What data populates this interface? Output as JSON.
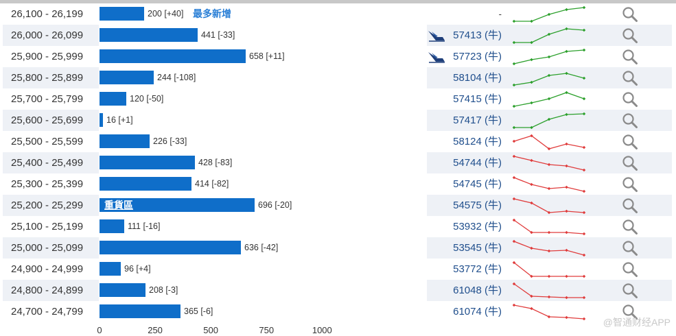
{
  "suffix_bull": "(牛)",
  "axis_ticks": [
    "0",
    "250",
    "500",
    "750",
    "1000"
  ],
  "axis_max": 1000,
  "watermark": "@智通财经APP",
  "colors": {
    "bar": "#0f6ec9",
    "up": "#2ca02c",
    "down": "#e03c3c",
    "code": "#1f4e8c"
  },
  "rows": [
    {
      "range": "26,100 - 26,199",
      "value": 200,
      "label": "200 [+40]",
      "tag": "最多新增",
      "code": "-",
      "bull": false,
      "ship": false,
      "trend": "up",
      "spark": [
        0,
        0,
        0.5,
        0.85,
        1
      ]
    },
    {
      "range": "26,000 - 26,099",
      "value": 441,
      "label": "441 [-33]",
      "code": "57413",
      "bull": true,
      "ship": true,
      "trend": "up",
      "spark": [
        0,
        0,
        0.6,
        1,
        0.9
      ]
    },
    {
      "range": "25,900 - 25,999",
      "value": 658,
      "label": "658 [+11]",
      "code": "57723",
      "bull": true,
      "ship": true,
      "trend": "up",
      "spark": [
        0,
        0.3,
        0.5,
        0.9,
        1
      ]
    },
    {
      "range": "25,800 - 25,899",
      "value": 244,
      "label": "244 [-108]",
      "code": "58104",
      "bull": true,
      "ship": false,
      "trend": "up",
      "spark": [
        0,
        0.2,
        0.7,
        0.85,
        0.5
      ]
    },
    {
      "range": "25,700 - 25,799",
      "value": 120,
      "label": "120 [-50]",
      "code": "57415",
      "bull": true,
      "ship": false,
      "trend": "up",
      "spark": [
        0,
        0.25,
        0.55,
        1,
        0.55
      ]
    },
    {
      "range": "25,600 - 25,699",
      "value": 16,
      "label": "16 [+1]",
      "code": "57417",
      "bull": true,
      "ship": false,
      "trend": "up",
      "spark": [
        0,
        0,
        0.6,
        0.95,
        1
      ]
    },
    {
      "range": "25,500 - 25,599",
      "value": 226,
      "label": "226 [-33]",
      "code": "58124",
      "bull": true,
      "ship": false,
      "trend": "down",
      "spark": [
        0.55,
        0.95,
        0,
        0.35,
        0.1
      ]
    },
    {
      "range": "25,400 - 25,499",
      "value": 428,
      "label": "428 [-83]",
      "code": "54744",
      "bull": true,
      "ship": false,
      "trend": "down",
      "spark": [
        1,
        0.7,
        0.4,
        0.3,
        0
      ]
    },
    {
      "range": "25,300 - 25,399",
      "value": 414,
      "label": "414 [-82]",
      "code": "54745",
      "bull": true,
      "ship": false,
      "trend": "down",
      "spark": [
        1,
        0.5,
        0.2,
        0.3,
        0
      ]
    },
    {
      "range": "25,200 - 25,299",
      "value": 696,
      "label": "696 [-20]",
      "tag_inbar": "重貨區",
      "code": "54575",
      "bull": true,
      "ship": false,
      "trend": "down",
      "spark": [
        1,
        0.7,
        0,
        0.1,
        0
      ]
    },
    {
      "range": "25,100 - 25,199",
      "value": 111,
      "label": "111 [-16]",
      "code": "53932",
      "bull": true,
      "ship": false,
      "trend": "down",
      "spark": [
        1,
        0.1,
        0.1,
        0.1,
        0
      ]
    },
    {
      "range": "25,000 - 25,099",
      "value": 636,
      "label": "636 [-42]",
      "code": "53545",
      "bull": true,
      "ship": false,
      "trend": "down",
      "spark": [
        1,
        0.5,
        0.3,
        0.35,
        0
      ]
    },
    {
      "range": "24,900 - 24,999",
      "value": 96,
      "label": "96 [+4]",
      "code": "53772",
      "bull": true,
      "ship": false,
      "trend": "down",
      "spark": [
        1,
        0,
        0,
        0,
        0
      ]
    },
    {
      "range": "24,800 - 24,899",
      "value": 208,
      "label": "208 [-3]",
      "code": "61048",
      "bull": true,
      "ship": false,
      "trend": "down",
      "spark": [
        1,
        0.1,
        0.05,
        0,
        0
      ]
    },
    {
      "range": "24,700 - 24,799",
      "value": 365,
      "label": "365 [-6]",
      "code": "61074",
      "bull": true,
      "ship": false,
      "trend": "down",
      "spark": [
        1,
        0.75,
        0.15,
        0.1,
        0
      ]
    }
  ]
}
